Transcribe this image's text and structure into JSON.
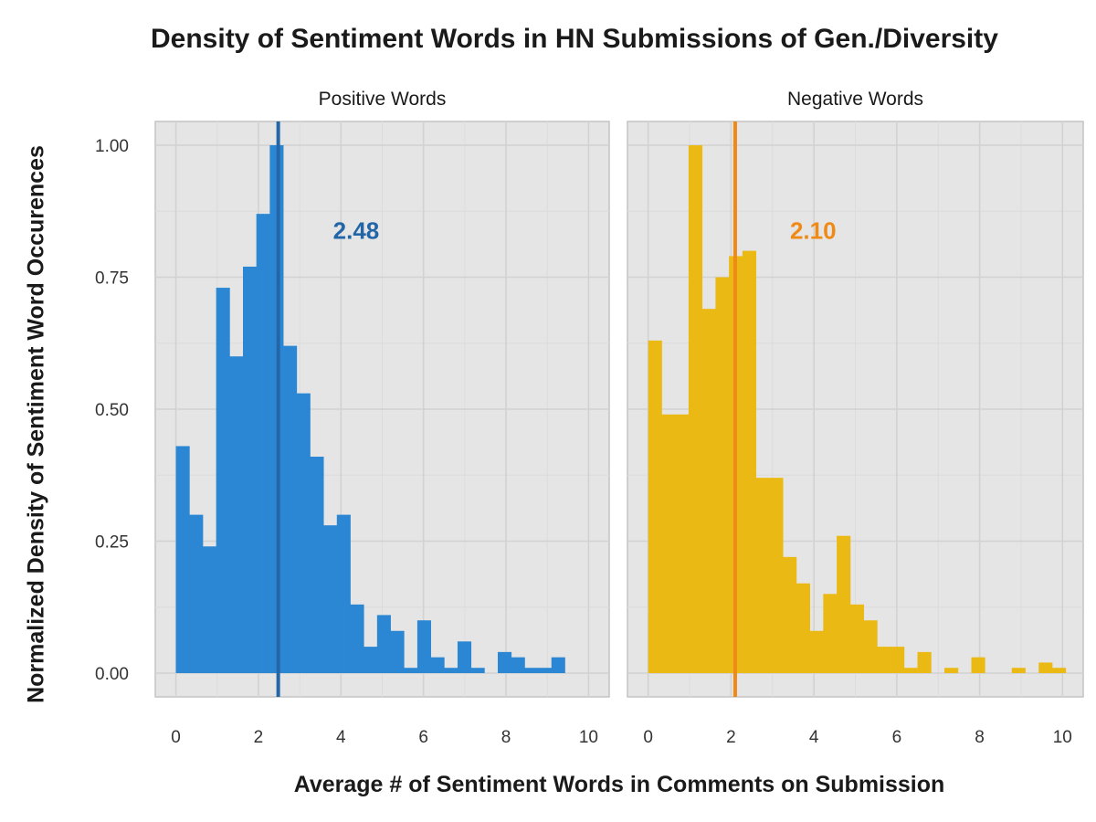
{
  "chart_data": {
    "type": "bar",
    "title": "Density of Sentiment Words in HN Submissions of Gen./Diversity",
    "xlabel": "Average # of Sentiment Words in Comments on Submission",
    "ylabel": "Normalized Density of Sentiment Word Occurences",
    "xlim": [
      -0.5,
      10.5
    ],
    "ylim": [
      -0.045,
      1.045
    ],
    "x_ticks": [
      0,
      2,
      4,
      6,
      8,
      10
    ],
    "y_ticks": [
      0,
      0.25,
      0.5,
      0.75,
      1.0
    ],
    "y_tick_labels": [
      "0.00",
      "0.25",
      "0.50",
      "0.75",
      "1.00"
    ],
    "bin_width": 0.325,
    "bin_start": 0.0,
    "grid": true,
    "panels": [
      {
        "name": "Positive Words",
        "color": "#2b87d3",
        "mean": 2.48,
        "mean_label": "2.48",
        "mean_line_color": "#2266a8",
        "mean_label_color": "#2266a8",
        "values": [
          0.43,
          0.3,
          0.24,
          0.73,
          0.6,
          0.77,
          0.87,
          1.0,
          0.62,
          0.53,
          0.41,
          0.28,
          0.3,
          0.13,
          0.05,
          0.11,
          0.08,
          0.01,
          0.1,
          0.03,
          0.01,
          0.06,
          0.01,
          0.0,
          0.04,
          0.03,
          0.01,
          0.01,
          0.03
        ]
      },
      {
        "name": "Negative Words",
        "color": "#ebb914",
        "mean": 2.1,
        "mean_label": "2.10",
        "mean_line_color": "#ef8a17",
        "mean_label_color": "#ef8a17",
        "values": [
          0.63,
          0.49,
          0.49,
          1.0,
          0.69,
          0.75,
          0.79,
          0.8,
          0.37,
          0.37,
          0.22,
          0.17,
          0.08,
          0.15,
          0.26,
          0.13,
          0.1,
          0.05,
          0.05,
          0.01,
          0.04,
          0.0,
          0.01,
          0.0,
          0.03,
          0.0,
          0.0,
          0.01,
          0.0,
          0.02,
          0.01
        ]
      }
    ]
  }
}
